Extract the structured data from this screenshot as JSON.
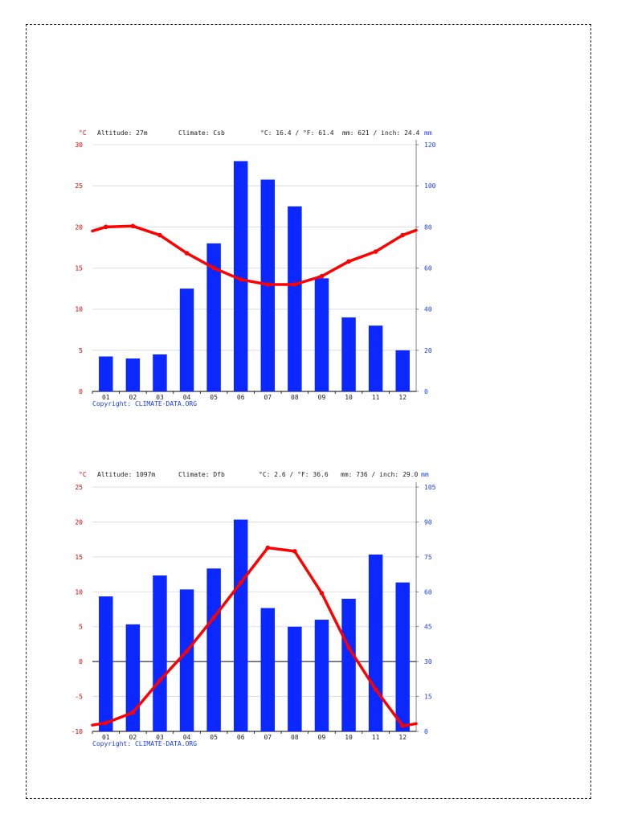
{
  "chart_data": [
    {
      "type": "bar+line",
      "header": {
        "temp_unit": "°C",
        "altitude": "Altitude: 27m",
        "climate": "Climate: Csb",
        "temps": "°C: 16.4 / °F: 61.4",
        "precip": "mm: 621 / inch: 24.4",
        "precip_unit": "mm"
      },
      "categories": [
        "01",
        "02",
        "03",
        "04",
        "05",
        "06",
        "07",
        "08",
        "09",
        "10",
        "11",
        "12"
      ],
      "y_left": {
        "label": "°C",
        "range": [
          0,
          30
        ],
        "ticks": [
          0,
          5,
          10,
          15,
          20,
          25,
          30
        ]
      },
      "y_right": {
        "label": "mm",
        "range": [
          0,
          120
        ],
        "ticks": [
          0,
          20,
          40,
          60,
          80,
          100,
          120
        ]
      },
      "series": [
        {
          "kind": "precipitation",
          "axis": "right",
          "values": [
            17,
            16,
            18,
            50,
            72,
            112,
            103,
            90,
            55,
            36,
            32,
            20
          ]
        },
        {
          "kind": "temperature",
          "axis": "left",
          "values": [
            20.0,
            20.1,
            19.0,
            16.8,
            15.0,
            13.6,
            13.0,
            13.0,
            14.0,
            15.8,
            17.0,
            19.0
          ],
          "edge_start": 19.5,
          "edge_end": 19.6
        }
      ],
      "colors": {
        "temp": "#ff0000",
        "precip": "#0a28ff",
        "temp_axis": "#e00000",
        "precip_axis": "#1a3cff"
      },
      "grid": true,
      "copyright": "Copyright: CLIMATE-DATA.ORG"
    },
    {
      "type": "bar+line",
      "header": {
        "temp_unit": "°C",
        "altitude": "Altitude: 1097m",
        "climate": "Climate: Dfb",
        "temps": "°C: 2.6 / °F: 36.6",
        "precip": "mm: 736 / inch: 29.0",
        "precip_unit": "mm"
      },
      "categories": [
        "01",
        "02",
        "03",
        "04",
        "05",
        "06",
        "07",
        "08",
        "09",
        "10",
        "11",
        "12"
      ],
      "y_left": {
        "label": "°C",
        "range": [
          -10,
          25
        ],
        "ticks": [
          -10,
          -5,
          0,
          5,
          10,
          15,
          20,
          25
        ]
      },
      "y_right": {
        "label": "mm",
        "range": [
          0,
          105
        ],
        "ticks": [
          0,
          15,
          30,
          45,
          60,
          75,
          90,
          105
        ]
      },
      "series": [
        {
          "kind": "precipitation",
          "axis": "right",
          "values": [
            58,
            46,
            67,
            61,
            70,
            91,
            53,
            45,
            48,
            57,
            76,
            64
          ]
        },
        {
          "kind": "temperature",
          "axis": "left",
          "values": [
            -8.8,
            -7.3,
            -2.7,
            1.5,
            6.3,
            11.3,
            16.3,
            15.8,
            9.8,
            2.0,
            -4.0,
            -9.2
          ],
          "edge_start": -9.1,
          "edge_end": -8.9
        }
      ],
      "colors": {
        "temp": "#ff0000",
        "precip": "#0a28ff",
        "temp_axis": "#e00000",
        "precip_axis": "#1a3cff"
      },
      "grid": true,
      "copyright": "Copyright: CLIMATE-DATA.ORG"
    }
  ]
}
